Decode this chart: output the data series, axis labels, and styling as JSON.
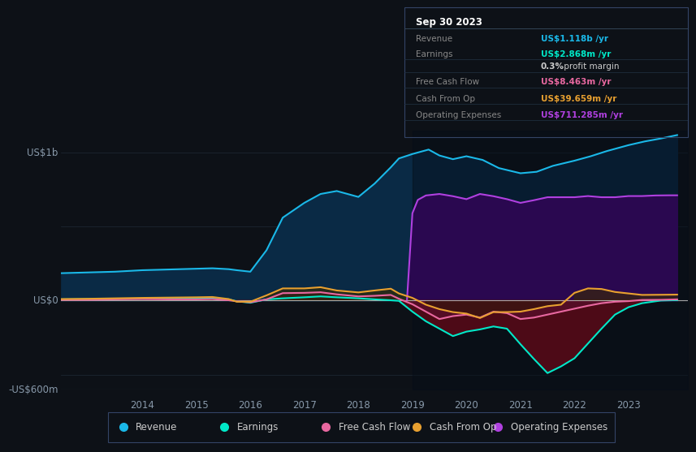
{
  "bg_color": "#0d1117",
  "chart_bg": "#0d1b2a",
  "ylabel_top": "US$1b",
  "ylabel_zero": "US$0",
  "ylabel_bottom": "-US$600m",
  "ylim": [
    -600,
    1150
  ],
  "xlim": [
    2012.5,
    2024.1
  ],
  "x_ticks": [
    2014,
    2015,
    2016,
    2017,
    2018,
    2019,
    2020,
    2021,
    2022,
    2023
  ],
  "colors": {
    "revenue": "#1ab8e8",
    "earnings": "#00e8c8",
    "free_cash_flow": "#e868a0",
    "cash_from_op": "#e8a030",
    "operating_expenses": "#b040e0"
  },
  "revenue": {
    "x": [
      2012.5,
      2013.0,
      2013.5,
      2014.0,
      2014.5,
      2015.0,
      2015.3,
      2015.6,
      2015.75,
      2016.0,
      2016.3,
      2016.6,
      2017.0,
      2017.3,
      2017.6,
      2018.0,
      2018.3,
      2018.6,
      2018.75,
      2019.0,
      2019.3,
      2019.5,
      2019.75,
      2020.0,
      2020.3,
      2020.6,
      2021.0,
      2021.3,
      2021.6,
      2022.0,
      2022.3,
      2022.6,
      2023.0,
      2023.3,
      2023.6,
      2023.9
    ],
    "y": [
      185,
      190,
      195,
      205,
      210,
      215,
      218,
      212,
      205,
      195,
      340,
      560,
      660,
      720,
      740,
      700,
      790,
      900,
      960,
      990,
      1020,
      980,
      955,
      975,
      950,
      895,
      860,
      870,
      910,
      945,
      975,
      1010,
      1050,
      1075,
      1095,
      1118
    ]
  },
  "earnings": {
    "x": [
      2012.5,
      2013.0,
      2013.5,
      2014.0,
      2014.5,
      2015.0,
      2015.3,
      2015.6,
      2015.75,
      2016.0,
      2016.3,
      2016.6,
      2017.0,
      2017.3,
      2017.6,
      2018.0,
      2018.3,
      2018.6,
      2018.75,
      2019.0,
      2019.25,
      2019.5,
      2019.75,
      2020.0,
      2020.25,
      2020.5,
      2020.75,
      2021.0,
      2021.25,
      2021.5,
      2021.75,
      2022.0,
      2022.25,
      2022.5,
      2022.75,
      2023.0,
      2023.25,
      2023.6,
      2023.9
    ],
    "y": [
      8,
      10,
      12,
      12,
      14,
      15,
      13,
      8,
      -5,
      -15,
      8,
      15,
      22,
      28,
      22,
      15,
      8,
      2,
      -2,
      -75,
      -140,
      -190,
      -240,
      -210,
      -195,
      -175,
      -190,
      -295,
      -395,
      -490,
      -445,
      -390,
      -290,
      -190,
      -95,
      -45,
      -18,
      0,
      3
    ]
  },
  "free_cash_flow": {
    "x": [
      2012.5,
      2013.0,
      2013.5,
      2014.0,
      2014.5,
      2015.0,
      2015.3,
      2015.6,
      2015.75,
      2016.0,
      2016.3,
      2016.6,
      2017.0,
      2017.3,
      2017.6,
      2018.0,
      2018.3,
      2018.6,
      2018.75,
      2019.0,
      2019.25,
      2019.5,
      2019.75,
      2020.0,
      2020.25,
      2020.5,
      2020.75,
      2021.0,
      2021.25,
      2021.5,
      2021.75,
      2022.0,
      2022.25,
      2022.5,
      2022.75,
      2023.0,
      2023.25,
      2023.6,
      2023.9
    ],
    "y": [
      5,
      5,
      8,
      10,
      8,
      8,
      10,
      2,
      -5,
      -12,
      8,
      50,
      52,
      56,
      42,
      28,
      32,
      38,
      12,
      -25,
      -75,
      -125,
      -105,
      -95,
      -115,
      -75,
      -85,
      -125,
      -115,
      -95,
      -75,
      -55,
      -35,
      -18,
      -8,
      -4,
      4,
      5,
      8
    ]
  },
  "cash_from_op": {
    "x": [
      2012.5,
      2013.0,
      2013.5,
      2014.0,
      2014.5,
      2015.0,
      2015.3,
      2015.6,
      2015.75,
      2016.0,
      2016.3,
      2016.6,
      2017.0,
      2017.3,
      2017.6,
      2018.0,
      2018.3,
      2018.6,
      2018.75,
      2019.0,
      2019.25,
      2019.5,
      2019.75,
      2020.0,
      2020.25,
      2020.5,
      2020.75,
      2021.0,
      2021.25,
      2021.5,
      2021.75,
      2022.0,
      2022.25,
      2022.5,
      2022.75,
      2023.0,
      2023.25,
      2023.6,
      2023.9
    ],
    "y": [
      10,
      12,
      15,
      18,
      20,
      22,
      24,
      10,
      -8,
      -8,
      35,
      82,
      82,
      90,
      68,
      55,
      68,
      80,
      48,
      18,
      -28,
      -58,
      -78,
      -88,
      -118,
      -78,
      -78,
      -75,
      -58,
      -38,
      -28,
      52,
      82,
      78,
      58,
      48,
      38,
      39,
      40
    ]
  },
  "operating_expenses": {
    "x": [
      2018.9,
      2019.0,
      2019.1,
      2019.25,
      2019.5,
      2019.75,
      2020.0,
      2020.25,
      2020.5,
      2020.75,
      2021.0,
      2021.25,
      2021.5,
      2021.75,
      2022.0,
      2022.25,
      2022.5,
      2022.75,
      2023.0,
      2023.25,
      2023.5,
      2023.75,
      2023.9
    ],
    "y": [
      5,
      590,
      680,
      710,
      720,
      705,
      685,
      720,
      705,
      685,
      660,
      678,
      698,
      698,
      698,
      706,
      698,
      698,
      706,
      706,
      710,
      711,
      711
    ]
  },
  "tooltip": {
    "title": "Sep 30 2023",
    "rows": [
      {
        "label": "Revenue",
        "value": "US$1.118b /yr",
        "value_color": "#1ab8e8"
      },
      {
        "label": "Earnings",
        "value": "US$2.868m /yr",
        "value_color": "#00e8c8"
      },
      {
        "label": "",
        "value": "0.3% profit margin",
        "value_color": "#cccccc",
        "bold": "0.3%"
      },
      {
        "label": "Free Cash Flow",
        "value": "US$8.463m /yr",
        "value_color": "#e868a0"
      },
      {
        "label": "Cash From Op",
        "value": "US$39.659m /yr",
        "value_color": "#e8a030"
      },
      {
        "label": "Operating Expenses",
        "value": "US$711.285m /yr",
        "value_color": "#b040e0"
      }
    ]
  },
  "legend": [
    {
      "label": "Revenue",
      "color": "#1ab8e8"
    },
    {
      "label": "Earnings",
      "color": "#00e8c8"
    },
    {
      "label": "Free Cash Flow",
      "color": "#e868a0"
    },
    {
      "label": "Cash From Op",
      "color": "#e8a030"
    },
    {
      "label": "Operating Expenses",
      "color": "#b040e0"
    }
  ]
}
